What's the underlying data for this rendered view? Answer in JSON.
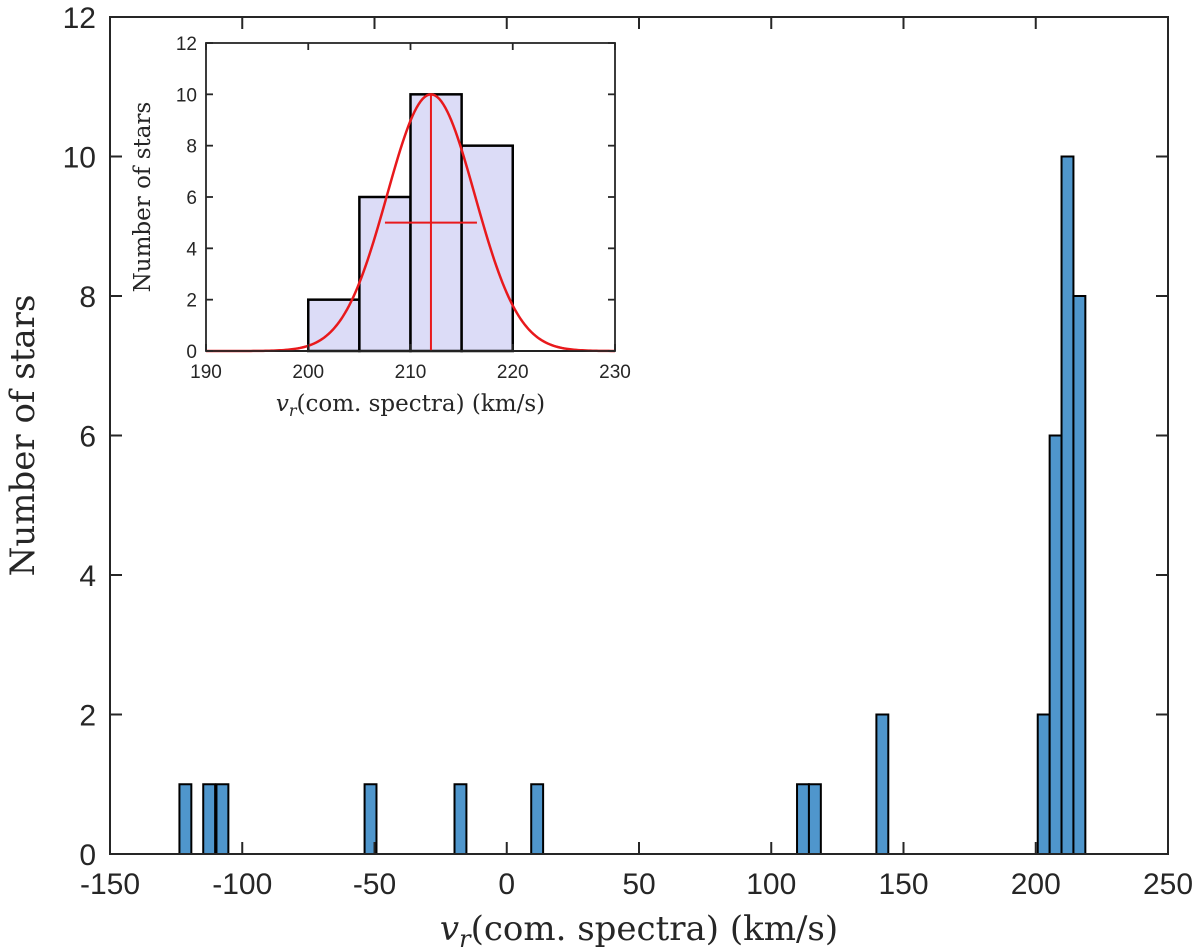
{
  "chart_data": [
    {
      "type": "bar",
      "name": "main-histogram",
      "xlabel_symbol": "v",
      "xlabel_subscript": "r",
      "xlabel": "(com. spectra) (km/s)",
      "ylabel": "Number of stars",
      "xlim": [
        -150,
        250
      ],
      "ylim": [
        0,
        12
      ],
      "xticks": [
        -150,
        -100,
        -50,
        0,
        50,
        100,
        150,
        200,
        250
      ],
      "yticks": [
        0,
        2,
        4,
        6,
        8,
        10,
        12
      ],
      "bin_width": 4.5,
      "bar_color": "#4f96cc",
      "bins": [
        {
          "center": -121.5,
          "count": 1
        },
        {
          "center": -112.5,
          "count": 1
        },
        {
          "center": -107.5,
          "count": 1
        },
        {
          "center": -51.5,
          "count": 1
        },
        {
          "center": -17.5,
          "count": 1
        },
        {
          "center": 11.5,
          "count": 1
        },
        {
          "center": 112,
          "count": 1
        },
        {
          "center": 116.5,
          "count": 1
        },
        {
          "center": 142,
          "count": 2
        },
        {
          "center": 203,
          "count": 2
        },
        {
          "center": 207.5,
          "count": 6
        },
        {
          "center": 212,
          "count": 10
        },
        {
          "center": 216.5,
          "count": 8
        }
      ],
      "baseline": [
        -138,
        247
      ]
    },
    {
      "type": "bar",
      "name": "inset-histogram",
      "xlabel_symbol": "v",
      "xlabel_subscript": "r",
      "xlabel": "(com. spectra) (km/s)",
      "ylabel": "Number of stars",
      "xlim": [
        190,
        230
      ],
      "ylim": [
        0,
        12
      ],
      "xticks": [
        190,
        200,
        210,
        220,
        230
      ],
      "yticks": [
        0,
        2,
        4,
        6,
        8,
        10,
        12
      ],
      "bar_color": "#dcdcf7",
      "bins": [
        {
          "start": 200,
          "end": 205,
          "count": 2
        },
        {
          "start": 205,
          "end": 210,
          "count": 6
        },
        {
          "start": 210,
          "end": 215,
          "count": 10
        },
        {
          "start": 215,
          "end": 220,
          "count": 8
        }
      ],
      "gaussian_fit": {
        "mean": 212,
        "sigma": 4.3,
        "amplitude": 10,
        "color": "#e8191c"
      },
      "mean_line": {
        "x": 212,
        "y_range": [
          0,
          10
        ]
      },
      "sigma_bar": {
        "y": 5,
        "x_range": [
          207.5,
          216.5
        ]
      }
    }
  ]
}
